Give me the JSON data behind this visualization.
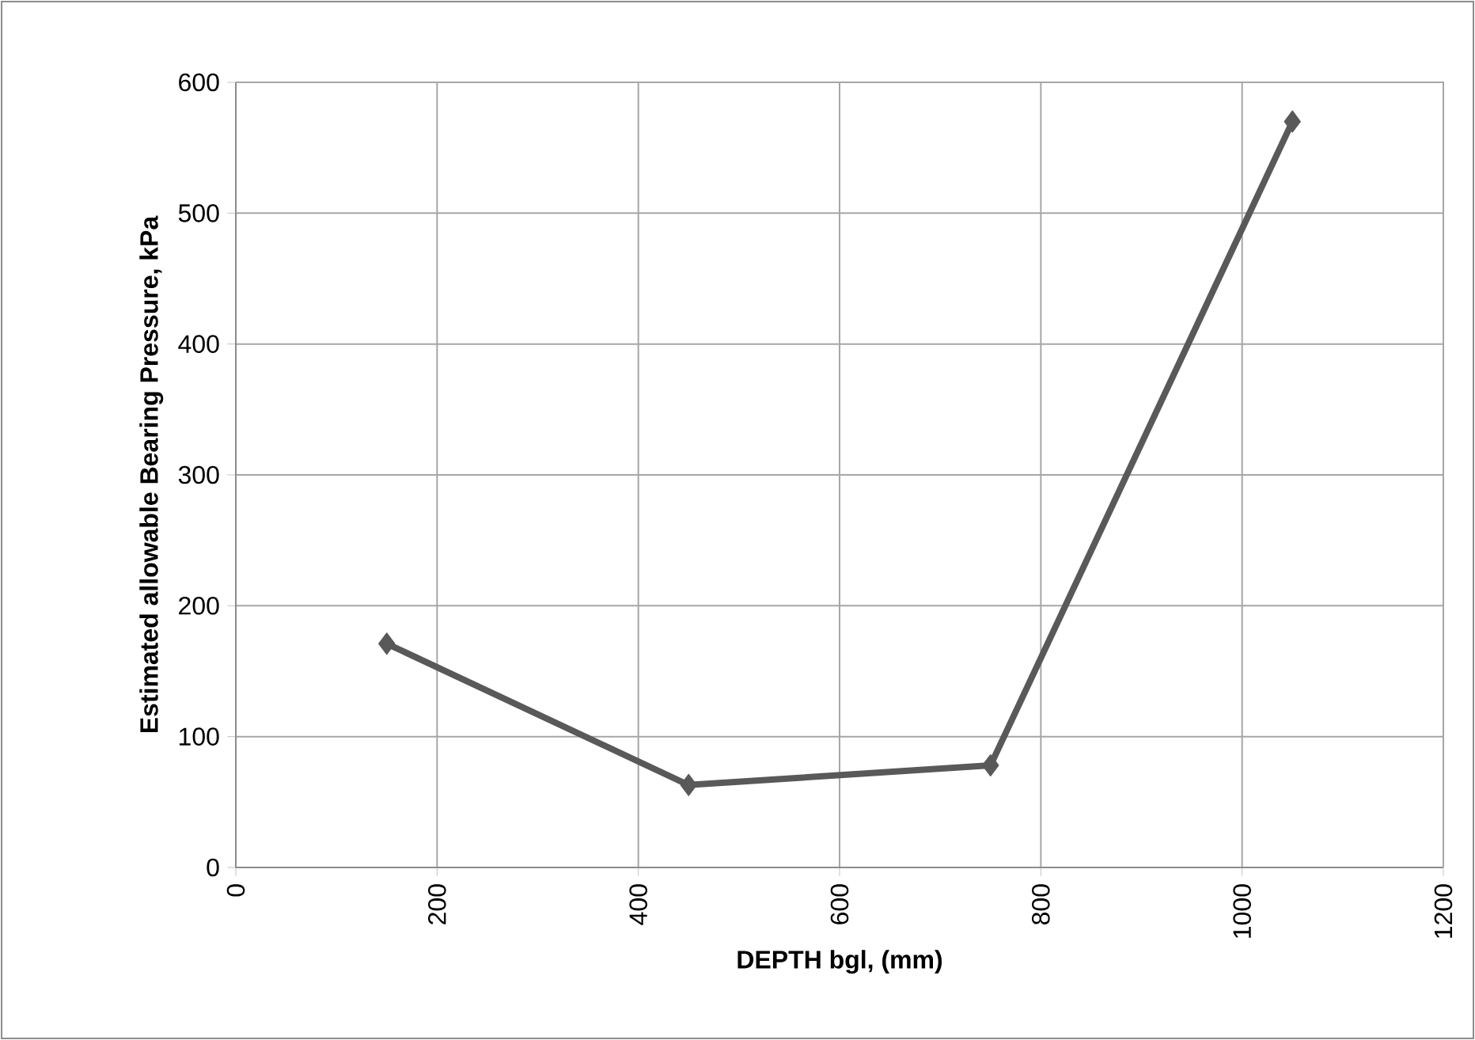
{
  "chart_data": {
    "type": "line",
    "xlabel": "DEPTH bgl, (mm)",
    "ylabel": "Estimated allowable Bearing Pressure, kPa",
    "x": [
      150,
      450,
      750,
      1050
    ],
    "series": [
      {
        "color": "#595959",
        "values": [
          171,
          63,
          78,
          570
        ]
      }
    ],
    "xlim": [
      0,
      1200
    ],
    "xticks": [
      0,
      200,
      400,
      600,
      800,
      1000,
      1200
    ],
    "ylim": [
      0,
      600
    ],
    "yticks": [
      0,
      100,
      200,
      300,
      400,
      500,
      600
    ],
    "grid": true,
    "marker": "diamond",
    "line_style": "solid"
  }
}
